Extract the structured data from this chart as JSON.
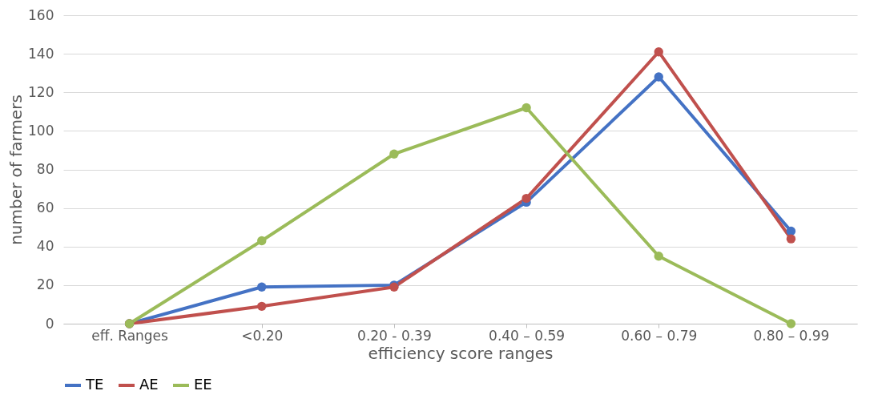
{
  "chart_data": {
    "type": "line",
    "xlabel": "efficiency score ranges",
    "ylabel": "number of farmers",
    "categories": [
      "eff. Ranges",
      "<0.20",
      "0.20 - 0.39",
      "0.40 – 0.59",
      "0.60 – 0.79",
      "0.80 – 0.99"
    ],
    "series": [
      {
        "name": "TE",
        "color": "#4472c4",
        "values": [
          0,
          19,
          20,
          63,
          128,
          48
        ]
      },
      {
        "name": "AE",
        "color": "#c0504d",
        "values": [
          0,
          9,
          19,
          65,
          141,
          44
        ]
      },
      {
        "name": "EE",
        "color": "#9bbb59",
        "values": [
          0,
          43,
          88,
          112,
          35,
          0
        ]
      }
    ],
    "ylim": [
      0,
      160
    ],
    "yticks": [
      0,
      20,
      40,
      60,
      80,
      100,
      120,
      140,
      160
    ],
    "grid": "y",
    "legend": "bottom",
    "marker": "circle",
    "line_style": "solid"
  }
}
